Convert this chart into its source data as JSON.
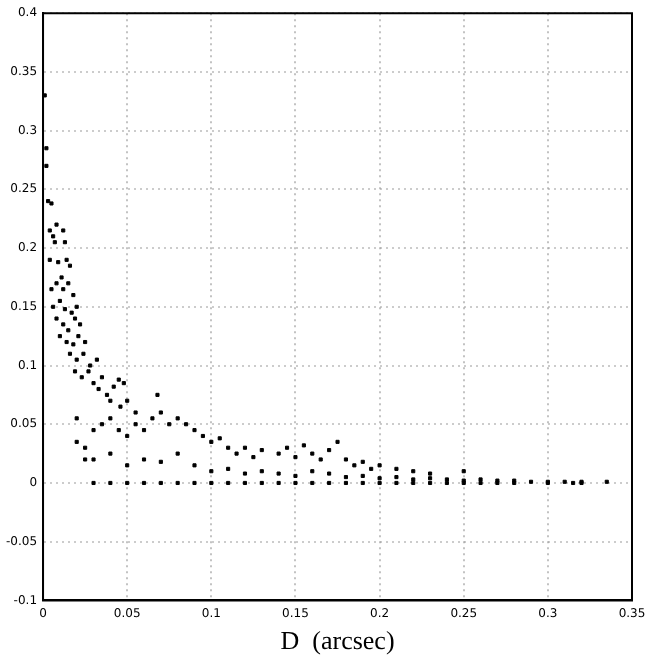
{
  "chart_data": {
    "type": "scatter",
    "xlabel": "D  (arcsec)",
    "xlim": [
      0,
      0.35
    ],
    "xticks": [
      0,
      0.05,
      0.1,
      0.15,
      0.2,
      0.25,
      0.3,
      0.35
    ],
    "ylim": [
      -0.1,
      0.4
    ],
    "yticks": [
      -0.1,
      -0.05,
      0,
      0.05,
      0.1,
      0.15,
      0.2,
      0.25,
      0.3,
      0.35,
      0.4
    ],
    "grid": true,
    "marker": "square",
    "series": [
      {
        "color": "#000000",
        "x": [
          0.001,
          0.002,
          0.002,
          0.003,
          0.005,
          0.004,
          0.006,
          0.007,
          0.008,
          0.012,
          0.013,
          0.004,
          0.009,
          0.014,
          0.016,
          0.011,
          0.005,
          0.008,
          0.012,
          0.015,
          0.018,
          0.006,
          0.01,
          0.013,
          0.017,
          0.02,
          0.008,
          0.012,
          0.015,
          0.019,
          0.022,
          0.01,
          0.014,
          0.018,
          0.021,
          0.025,
          0.016,
          0.02,
          0.024,
          0.028,
          0.032,
          0.019,
          0.023,
          0.027,
          0.03,
          0.035,
          0.033,
          0.038,
          0.042,
          0.045,
          0.048,
          0.04,
          0.046,
          0.05,
          0.055,
          0.068,
          0.02,
          0.025,
          0.03,
          0.035,
          0.04,
          0.045,
          0.05,
          0.055,
          0.06,
          0.065,
          0.07,
          0.075,
          0.08,
          0.085,
          0.09,
          0.095,
          0.1,
          0.105,
          0.11,
          0.115,
          0.12,
          0.125,
          0.13,
          0.14,
          0.145,
          0.15,
          0.155,
          0.16,
          0.165,
          0.17,
          0.175,
          0.18,
          0.185,
          0.19,
          0.195,
          0.2,
          0.21,
          0.22,
          0.23,
          0.25,
          0.02,
          0.025,
          0.03,
          0.04,
          0.05,
          0.06,
          0.07,
          0.08,
          0.09,
          0.1,
          0.11,
          0.12,
          0.13,
          0.14,
          0.15,
          0.16,
          0.17,
          0.18,
          0.19,
          0.2,
          0.21,
          0.22,
          0.23,
          0.24,
          0.25,
          0.26,
          0.27,
          0.28,
          0.29,
          0.3,
          0.31,
          0.32,
          0.335,
          0.03,
          0.04,
          0.05,
          0.06,
          0.07,
          0.08,
          0.09,
          0.1,
          0.11,
          0.12,
          0.13,
          0.14,
          0.15,
          0.16,
          0.17,
          0.18,
          0.19,
          0.2,
          0.21,
          0.22,
          0.23,
          0.24,
          0.25,
          0.26,
          0.27,
          0.28,
          0.3,
          0.315,
          0.32
        ],
        "values": [
          0.33,
          0.285,
          0.27,
          0.24,
          0.238,
          0.215,
          0.21,
          0.205,
          0.22,
          0.215,
          0.205,
          0.19,
          0.188,
          0.19,
          0.185,
          0.175,
          0.165,
          0.17,
          0.165,
          0.17,
          0.16,
          0.15,
          0.155,
          0.148,
          0.145,
          0.15,
          0.14,
          0.135,
          0.13,
          0.14,
          0.135,
          0.125,
          0.12,
          0.118,
          0.125,
          0.12,
          0.11,
          0.105,
          0.11,
          0.1,
          0.105,
          0.095,
          0.09,
          0.095,
          0.085,
          0.09,
          0.08,
          0.075,
          0.082,
          0.088,
          0.085,
          0.07,
          0.065,
          0.07,
          0.06,
          0.075,
          0.055,
          0.03,
          0.045,
          0.05,
          0.055,
          0.045,
          0.04,
          0.05,
          0.045,
          0.055,
          0.06,
          0.05,
          0.055,
          0.05,
          0.045,
          0.04,
          0.035,
          0.038,
          0.03,
          0.025,
          0.03,
          0.022,
          0.028,
          0.025,
          0.03,
          0.022,
          0.032,
          0.025,
          0.02,
          0.028,
          0.035,
          0.02,
          0.015,
          0.018,
          0.012,
          0.015,
          0.012,
          0.01,
          0.008,
          0.01,
          0.035,
          0.02,
          0.02,
          0.025,
          0.015,
          0.02,
          0.018,
          0.025,
          0.015,
          0.01,
          0.012,
          0.008,
          0.01,
          0.008,
          0.006,
          0.01,
          0.008,
          0.005,
          0.006,
          0.004,
          0.005,
          0.003,
          0.004,
          0.003,
          0.002,
          0.003,
          0.002,
          0.002,
          0.001,
          0.001,
          0.001,
          0.001,
          0.001,
          0,
          0,
          0,
          0,
          0,
          0,
          0,
          0,
          0,
          0,
          0,
          0,
          0,
          0,
          0,
          0,
          0,
          0,
          0,
          0,
          0,
          0,
          0,
          0,
          0,
          0,
          0,
          0,
          0
        ]
      }
    ]
  }
}
